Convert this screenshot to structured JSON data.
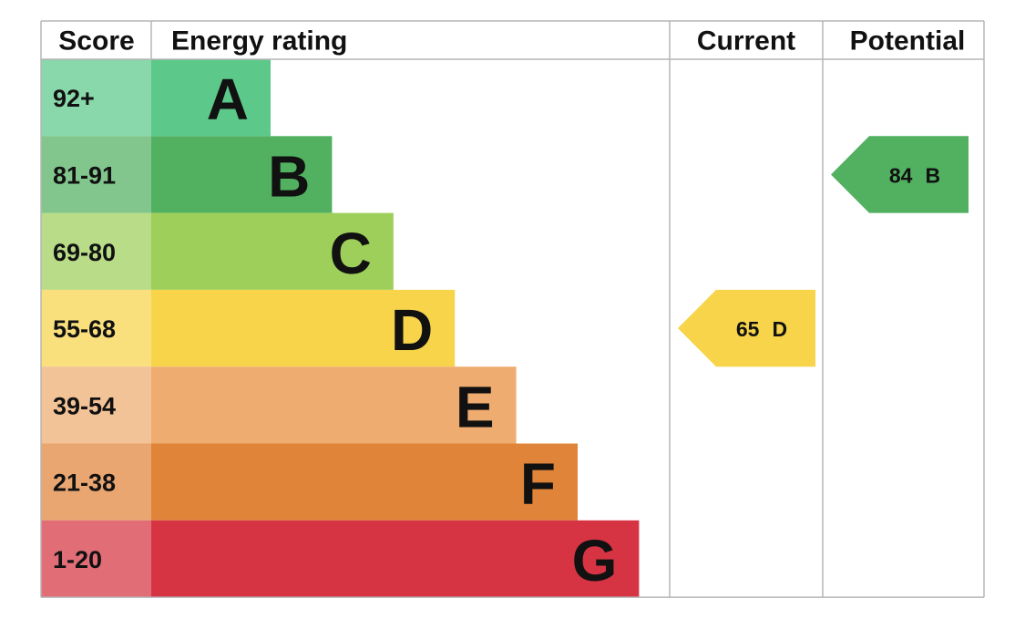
{
  "header": {
    "score": "Score",
    "energy_rating": "Energy rating",
    "current": "Current",
    "potential": "Potential"
  },
  "bands": [
    {
      "score": "92+",
      "rating": "A",
      "color": "#5cc98a"
    },
    {
      "score": "81-91",
      "rating": "B",
      "color": "#52b061"
    },
    {
      "score": "69-80",
      "rating": "C",
      "color": "#9dcf5a"
    },
    {
      "score": "55-68",
      "rating": "D",
      "color": "#f7d44a"
    },
    {
      "score": "39-54",
      "rating": "E",
      "color": "#efac70"
    },
    {
      "score": "21-38",
      "rating": "F",
      "color": "#e0843a"
    },
    {
      "score": "1-20",
      "rating": "G",
      "color": "#d63443"
    }
  ],
  "current": {
    "score": 65,
    "rating": "D"
  },
  "potential": {
    "score": 84,
    "rating": "B"
  }
}
